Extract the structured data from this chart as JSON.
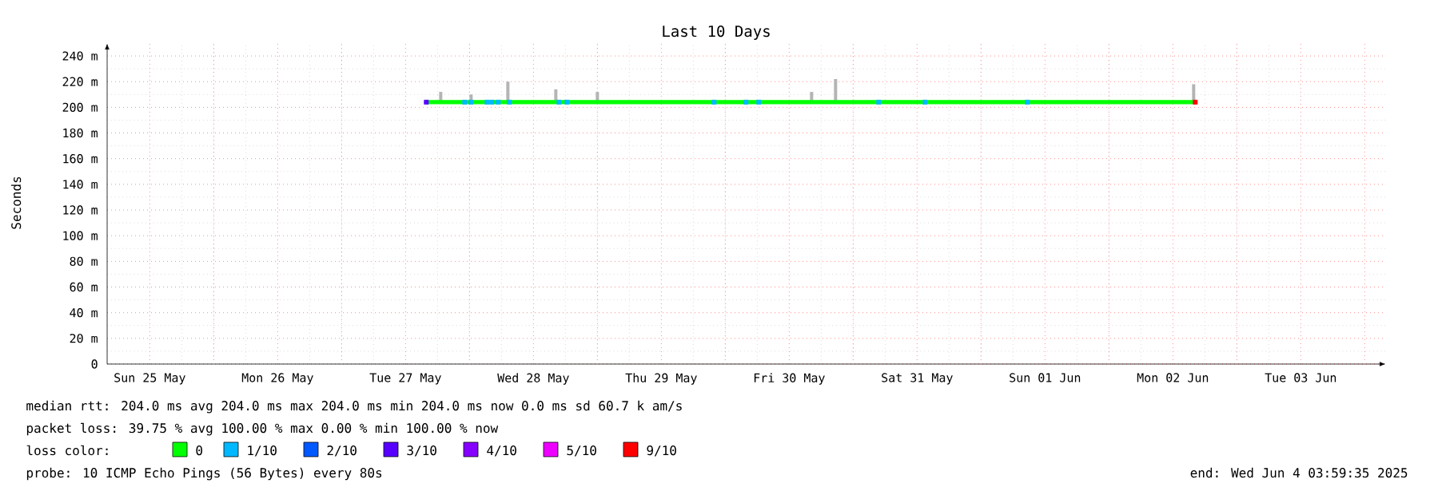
{
  "chart_data": {
    "type": "line",
    "title": "Last 10 Days",
    "ylabel": "Seconds",
    "legend_title": "loss color:",
    "legend": "bottom",
    "grid": true,
    "xlim": [
      "2025-05-25T04:00",
      "2025-06-04T04:00"
    ],
    "xticks": [
      {
        "value": "2025-05-25T12:00",
        "label": "Sun 25 May"
      },
      {
        "value": "2025-05-26T00:00",
        "label": null
      },
      {
        "value": "2025-05-26T12:00",
        "label": "Mon 26 May"
      },
      {
        "value": "2025-05-27T00:00",
        "label": null
      },
      {
        "value": "2025-05-27T12:00",
        "label": "Tue 27 May"
      },
      {
        "value": "2025-05-28T00:00",
        "label": null
      },
      {
        "value": "2025-05-28T12:00",
        "label": "Wed 28 May"
      },
      {
        "value": "2025-05-29T00:00",
        "label": null
      },
      {
        "value": "2025-05-29T12:00",
        "label": "Thu 29 May"
      },
      {
        "value": "2025-05-30T00:00",
        "label": null
      },
      {
        "value": "2025-05-30T12:00",
        "label": "Fri 30 May"
      },
      {
        "value": "2025-05-31T00:00",
        "label": null
      },
      {
        "value": "2025-05-31T12:00",
        "label": "Sat 31 May"
      },
      {
        "value": "2025-06-01T00:00",
        "label": null
      },
      {
        "value": "2025-06-01T12:00",
        "label": "Sun 01 Jun"
      },
      {
        "value": "2025-06-02T00:00",
        "label": null
      },
      {
        "value": "2025-06-02T12:00",
        "label": "Mon 02 Jun"
      },
      {
        "value": "2025-06-03T00:00",
        "label": null
      },
      {
        "value": "2025-06-03T12:00",
        "label": "Tue 03 Jun"
      },
      {
        "value": "2025-06-04T00:00",
        "label": null
      }
    ],
    "ylim": [
      0,
      250
    ],
    "yticks": [
      0,
      {
        "value": 20,
        "label": "20 m"
      },
      {
        "value": 40,
        "label": "40 m"
      },
      {
        "value": 60,
        "label": "60 m"
      },
      {
        "value": 80,
        "label": "80 m"
      },
      {
        "value": 100,
        "label": "100 m"
      },
      {
        "value": 120,
        "label": "120 m"
      },
      {
        "value": 140,
        "label": "140 m"
      },
      {
        "value": 160,
        "label": "160 m"
      },
      {
        "value": 180,
        "label": "180 m"
      },
      {
        "value": 200,
        "label": "200 m"
      },
      {
        "value": 220,
        "label": "220 m"
      },
      {
        "value": 240,
        "label": "240 m"
      }
    ],
    "series": [
      {
        "type": "bar",
        "color": "#b4b4b4",
        "x": [
          "2025-05-27T18:36",
          "2025-05-28T00:18",
          "2025-05-28T07:12",
          "2025-05-28T16:12",
          "2025-05-29T00:00",
          "2025-05-30T16:12",
          "2025-05-30T20:42",
          "2025-06-02T15:54"
        ],
        "base": [
          204,
          204,
          204,
          204,
          204,
          204,
          204,
          204
        ],
        "values": [
          8,
          6,
          16,
          10,
          8,
          8,
          18,
          14
        ]
      },
      {
        "name": "0",
        "color": "#00ff00",
        "x": [
          "2025-05-27T15:54",
          "2025-06-02T16:12"
        ],
        "values": [
          204,
          204
        ]
      },
      {
        "type": "scatter",
        "marker": "square",
        "name": "1/10",
        "color": "#00b8ff",
        "x": [
          "2025-05-27T23:06",
          "2025-05-28T00:18",
          "2025-05-28T03:18",
          "2025-05-28T04:12",
          "2025-05-28T05:24",
          "2025-05-28T07:30",
          "2025-05-28T16:48",
          "2025-05-28T18:18",
          "2025-05-29T21:54",
          "2025-05-30T03:54",
          "2025-05-30T06:18",
          "2025-05-31T04:48",
          "2025-05-31T13:30",
          "2025-06-01T08:42"
        ],
        "values": [
          204,
          204,
          204,
          204,
          204,
          204,
          204,
          204,
          204,
          204,
          204,
          204,
          204,
          204
        ]
      },
      {
        "type": "scatter",
        "marker": "square",
        "name": "2/10",
        "color": "#0059ff"
      },
      {
        "type": "scatter",
        "marker": "square",
        "name": "3/10",
        "color": "#5700ff",
        "x": [
          "2025-05-27T15:54"
        ],
        "values": [
          204
        ]
      },
      {
        "type": "scatter",
        "marker": "square",
        "name": "4/10",
        "color": "#8600ff"
      },
      {
        "type": "scatter",
        "marker": "square",
        "name": "5/10",
        "color": "#ee00ff"
      },
      {
        "type": "scatter",
        "marker": "square",
        "name": "9/10",
        "color": "#ff0000",
        "x": [
          "2025-06-02T16:12"
        ],
        "values": [
          204
        ]
      }
    ],
    "annotations": [
      "median rtt: 204.0 ms avg 204.0 ms max 204.0 ms min 204.0 ms now 0.0 ms sd 60.7 k am/s",
      "packet loss: 39.75 % avg 100.00 % max 0.00 % min 100.00 % now",
      "probe: 10 ICMP Echo Pings (56 Bytes) every 80s",
      "end: Wed Jun 4 03:59:35 2025"
    ]
  }
}
